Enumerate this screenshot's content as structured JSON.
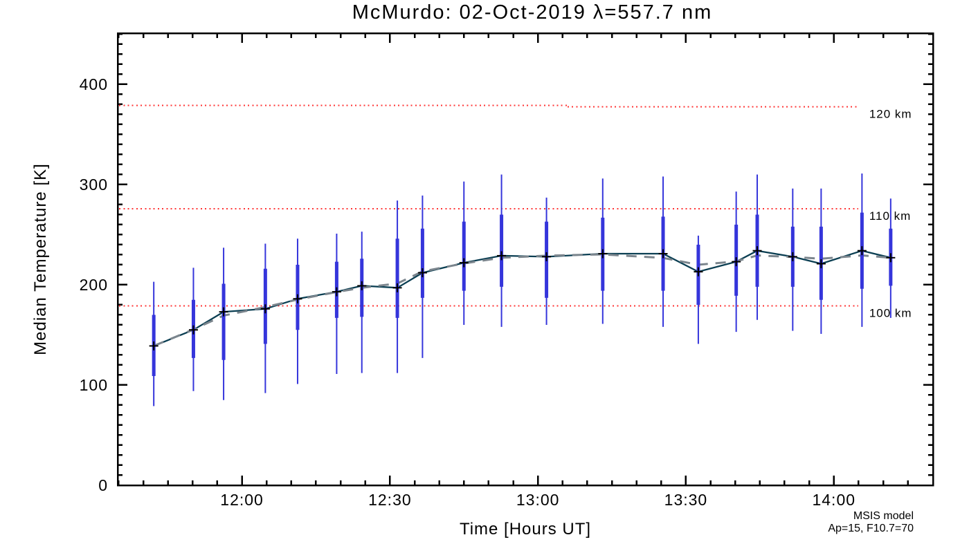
{
  "chart_data": {
    "type": "line",
    "title": "McMurdo: 02-Oct-2019 λ=557.7 nm",
    "xlabel": "Time [Hours UT]",
    "ylabel": "Median Temperature [K]",
    "xlim_hours": [
      11.58,
      14.335
    ],
    "ylim": [
      0,
      451
    ],
    "grid": "off",
    "x_major_ticks": [
      {
        "hour": 12.0,
        "label": "12:00"
      },
      {
        "hour": 12.5,
        "label": "12:30"
      },
      {
        "hour": 13.0,
        "label": "13:00"
      },
      {
        "hour": 13.5,
        "label": "13:30"
      },
      {
        "hour": 14.0,
        "label": "14:00"
      }
    ],
    "x_minor_step_minutes": 5,
    "y_major_ticks": [
      0,
      100,
      200,
      300,
      400
    ],
    "y_minor_step": 10,
    "series": {
      "median": {
        "name": "median temperature with quartile (thick) and full-range (thin) error bars",
        "color": "#0a3e52",
        "marker": "plus",
        "error_bar_color": "#3535db",
        "points": [
          {
            "time": "11:42",
            "hour": 11.702,
            "temp": 139,
            "inner": [
              109,
              170
            ],
            "outer": [
              79,
              203
            ]
          },
          {
            "time": "11:50",
            "hour": 11.836,
            "temp": 155,
            "inner": [
              127,
              185
            ],
            "outer": [
              94,
              217
            ]
          },
          {
            "time": "11:56",
            "hour": 11.938,
            "temp": 173,
            "inner": [
              125,
              201
            ],
            "outer": [
              85,
              237
            ]
          },
          {
            "time": "12:05",
            "hour": 12.079,
            "temp": 176,
            "inner": [
              141,
              216
            ],
            "outer": [
              92,
              241
            ]
          },
          {
            "time": "12:11",
            "hour": 12.188,
            "temp": 186,
            "inner": [
              155,
              220
            ],
            "outer": [
              101,
              246
            ]
          },
          {
            "time": "12:19",
            "hour": 12.32,
            "temp": 193,
            "inner": [
              167,
              223
            ],
            "outer": [
              111,
              251
            ]
          },
          {
            "time": "12:24",
            "hour": 12.405,
            "temp": 199,
            "inner": [
              168,
              226
            ],
            "outer": [
              112,
              253
            ]
          },
          {
            "time": "12:32",
            "hour": 12.525,
            "temp": 197,
            "inner": [
              167,
              246
            ],
            "outer": [
              112,
              284
            ]
          },
          {
            "time": "12:37",
            "hour": 12.61,
            "temp": 212,
            "inner": [
              187,
              256
            ],
            "outer": [
              127,
              289
            ]
          },
          {
            "time": "12:45",
            "hour": 12.75,
            "temp": 222,
            "inner": [
              194,
              263
            ],
            "outer": [
              160,
              303
            ]
          },
          {
            "time": "12:53",
            "hour": 12.877,
            "temp": 229,
            "inner": [
              198,
              270
            ],
            "outer": [
              158,
              310
            ]
          },
          {
            "time": "13:02",
            "hour": 13.029,
            "temp": 228,
            "inner": [
              187,
              263
            ],
            "outer": [
              160,
              287
            ]
          },
          {
            "time": "13:13",
            "hour": 13.219,
            "temp": 231,
            "inner": [
              194,
              267
            ],
            "outer": [
              161,
              306
            ]
          },
          {
            "time": "13:25",
            "hour": 13.423,
            "temp": 231,
            "inner": [
              194,
              268
            ],
            "outer": [
              158,
              308
            ]
          },
          {
            "time": "13:33",
            "hour": 13.542,
            "temp": 213,
            "inner": [
              180,
              240
            ],
            "outer": [
              141,
              249
            ]
          },
          {
            "time": "13:40",
            "hour": 13.67,
            "temp": 223,
            "inner": [
              189,
              260
            ],
            "outer": [
              153,
              293
            ]
          },
          {
            "time": "13:44",
            "hour": 13.741,
            "temp": 234,
            "inner": [
              198,
              270
            ],
            "outer": [
              165,
              310
            ]
          },
          {
            "time": "13:52",
            "hour": 13.861,
            "temp": 228,
            "inner": [
              198,
              258
            ],
            "outer": [
              154,
              296
            ]
          },
          {
            "time": "13:57",
            "hour": 13.957,
            "temp": 221,
            "inner": [
              185,
              258
            ],
            "outer": [
              151,
              296
            ]
          },
          {
            "time": "14:06",
            "hour": 14.095,
            "temp": 234,
            "inner": [
              196,
              272
            ],
            "outer": [
              158,
              311
            ]
          },
          {
            "time": "14:12",
            "hour": 14.192,
            "temp": 227,
            "inner": [
              199,
              256
            ],
            "outer": [
              167,
              286
            ]
          }
        ]
      },
      "smoothed": {
        "name": "smoothed median (gray dashed)",
        "color": "#7b858d",
        "values": [
          139,
          155.5,
          169.3,
          177.8,
          185.3,
          192.8,
          197,
          201.3,
          213.3,
          221.3,
          227,
          229,
          230.3,
          226.8,
          220,
          223.3,
          229.3,
          227.8,
          226,
          229.3,
          227
        ]
      },
      "msis_altitude_lines": {
        "color": "#ff3333",
        "style": "dotted",
        "lines": [
          {
            "label": "120 km",
            "segments": [
              {
                "from": 11.585,
                "to": 13.1,
                "temp": 379
              },
              {
                "from": 13.1,
                "to": 14.082,
                "temp": 377.5
              }
            ]
          },
          {
            "label": "110 km",
            "segments": [
              {
                "from": 11.585,
                "to": 14.082,
                "temp": 275.7
              }
            ]
          },
          {
            "label": "100 km",
            "segments": [
              {
                "from": 11.585,
                "to": 14.082,
                "temp": 179
              }
            ]
          }
        ]
      }
    },
    "annotations": {
      "model_note_line1": "MSIS model",
      "model_note_line2": "Ap=15, F10.7=70",
      "color": "#ff3333"
    },
    "colors": {
      "background": "#ffffff",
      "axis": "#000000",
      "median_line": "#0a3e52",
      "error_bar": "#3535db",
      "smoothed_dash": "#7b858d",
      "msis_red": "#ff3333"
    }
  }
}
